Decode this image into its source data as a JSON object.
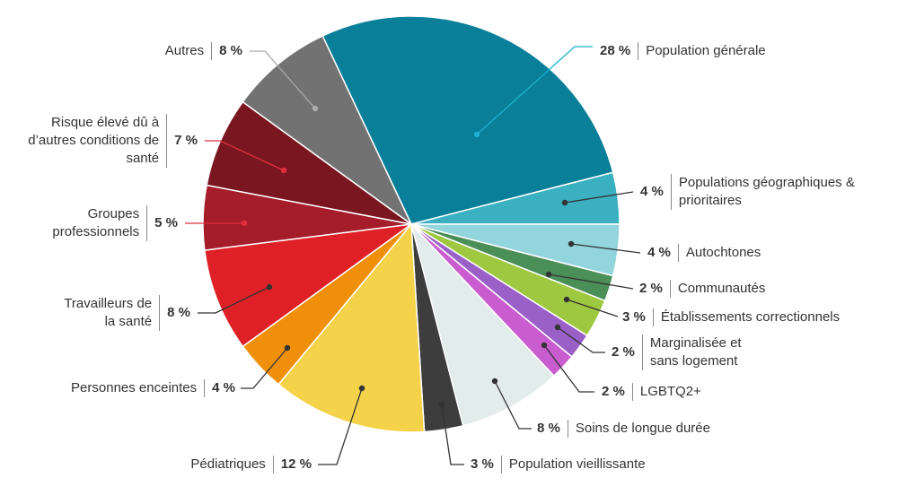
{
  "chart_data": {
    "type": "pie",
    "categories": [
      "Population générale",
      "Populations géographiques & prioritaires",
      "Autochtones",
      "Communautés",
      "Établissements correctionnels",
      "Marginalisée et sans logement",
      "LGBTQ2+",
      "Soins de longue durée",
      "Population vieillissante",
      "Pédiatriques",
      "Personnes enceintes",
      "Travailleurs de la santé",
      "Groupes professionnels",
      "Risque élevé dû à d’autres conditions de santé",
      "Autres"
    ],
    "values": [
      28,
      4,
      4,
      2,
      3,
      2,
      2,
      8,
      3,
      12,
      4,
      8,
      5,
      7,
      8
    ],
    "value_labels": [
      "28 %",
      "4 %",
      "4 %",
      "2 %",
      "3 %",
      "2 %",
      "2 %",
      "8 %",
      "3 %",
      "12 %",
      "4 %",
      "8 %",
      "5 %",
      "7 %",
      "8 %"
    ],
    "colors": [
      "#0a7f9a",
      "#3ab0c0",
      "#93d5dc",
      "#4b8f58",
      "#9dc83f",
      "#9b5fc8",
      "#c95ccf",
      "#e2ecea",
      "#3d3d3d",
      "#f4d34a",
      "#f0900a",
      "#e02027",
      "#a51c2a",
      "#7a1620",
      "#727272"
    ]
  }
}
